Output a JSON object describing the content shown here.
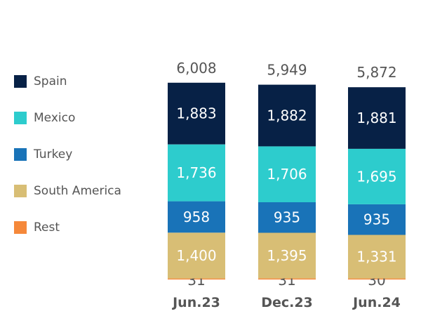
{
  "chart_data": {
    "type": "bar",
    "stacked": true,
    "categories": [
      "Jun.23",
      "Dec.23",
      "Jun.24"
    ],
    "totals": [
      "6,008",
      "5,949",
      "5,872"
    ],
    "series": [
      {
        "name": "Rest",
        "color": "#F5883A",
        "values": [
          31,
          31,
          30
        ],
        "labels": [
          "31",
          "31",
          "30"
        ],
        "label_color": "#555555"
      },
      {
        "name": "South America",
        "color": "#D8BE75",
        "values": [
          1400,
          1395,
          1331
        ],
        "labels": [
          "1,400",
          "1,395",
          "1,331"
        ],
        "label_color": "#ffffff"
      },
      {
        "name": "Turkey",
        "color": "#1973B8",
        "values": [
          958,
          935,
          935
        ],
        "labels": [
          "958",
          "935",
          "935"
        ],
        "label_color": "#ffffff"
      },
      {
        "name": "Mexico",
        "color": "#2DCCCD",
        "values": [
          1736,
          1706,
          1695
        ],
        "labels": [
          "1,736",
          "1,706",
          "1,695"
        ],
        "label_color": "#ffffff"
      },
      {
        "name": "Spain",
        "color": "#072146",
        "values": [
          1883,
          1882,
          1881
        ],
        "labels": [
          "1,883",
          "1,882",
          "1,881"
        ],
        "label_color": "#ffffff"
      }
    ],
    "legend_order": [
      "Spain",
      "Mexico",
      "Turkey",
      "South America",
      "Rest"
    ],
    "legend_position": "left",
    "grid": false,
    "title": "",
    "xlabel": "",
    "ylabel": ""
  }
}
